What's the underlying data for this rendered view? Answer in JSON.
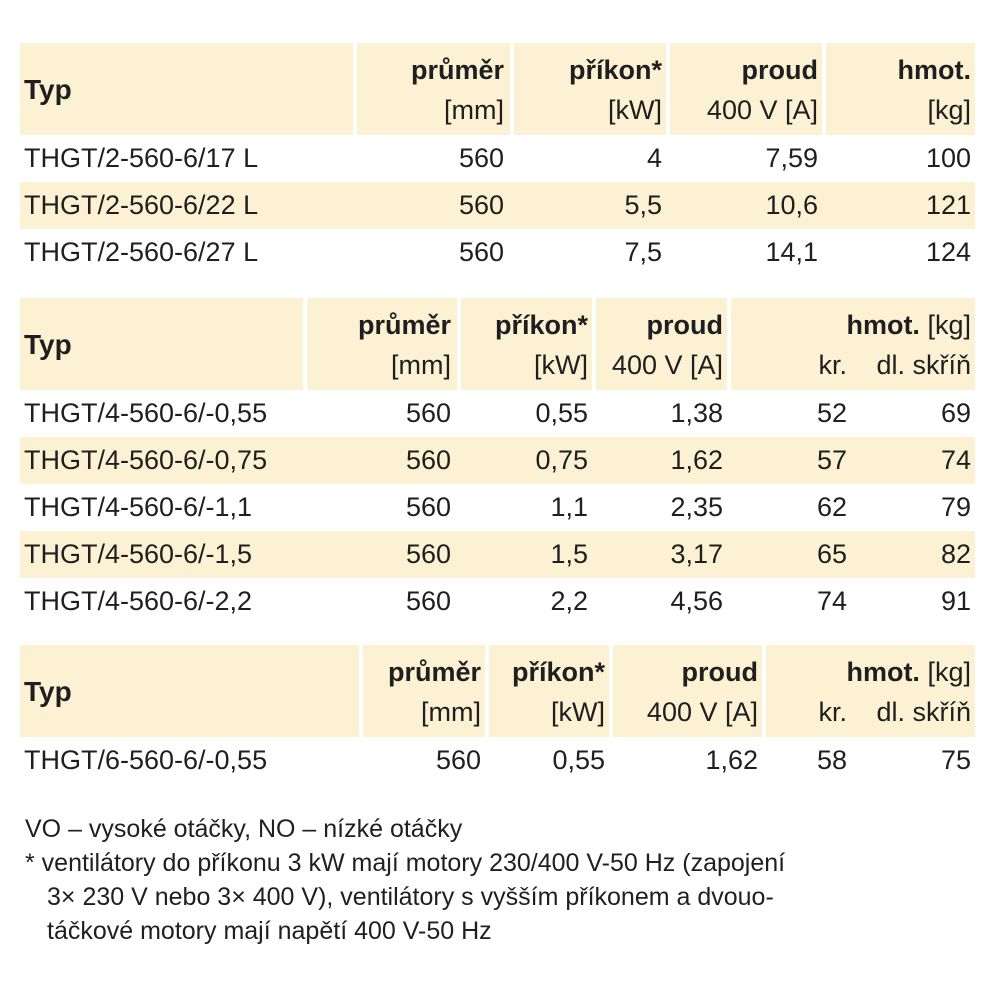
{
  "table1": {
    "headers": {
      "typ": "Typ",
      "prumer": "průměr",
      "prumer_unit": "[mm]",
      "prikon": "příkon*",
      "prikon_unit": "[kW]",
      "proud": "proud",
      "proud_unit": "400 V [A]",
      "hmot": "hmot.",
      "hmot_unit": "[kg]"
    },
    "rows": [
      [
        "THGT/2-560-6/17 L",
        "560",
        "4",
        "7,59",
        "100"
      ],
      [
        "THGT/2-560-6/22 L",
        "560",
        "5,5",
        "10,6",
        "121"
      ],
      [
        "THGT/2-560-6/27 L",
        "560",
        "7,5",
        "14,1",
        "124"
      ]
    ]
  },
  "table2": {
    "headers": {
      "typ": "Typ",
      "prumer": "průměr",
      "prumer_unit": "[mm]",
      "prikon": "příkon*",
      "prikon_unit": "[kW]",
      "proud": "proud",
      "proud_unit": "400 V [A]",
      "hmot": "hmot.",
      "hmot_unit": "[kg]",
      "kr": "kr.",
      "dlskrin": "dl. skříň"
    },
    "rows": [
      [
        "THGT/4-560-6/-0,55",
        "560",
        "0,55",
        "1,38",
        "52",
        "69"
      ],
      [
        "THGT/4-560-6/-0,75",
        "560",
        "0,75",
        "1,62",
        "57",
        "74"
      ],
      [
        "THGT/4-560-6/-1,1",
        "560",
        "1,1",
        "2,35",
        "62",
        "79"
      ],
      [
        "THGT/4-560-6/-1,5",
        "560",
        "1,5",
        "3,17",
        "65",
        "82"
      ],
      [
        "THGT/4-560-6/-2,2",
        "560",
        "2,2",
        "4,56",
        "74",
        "91"
      ]
    ]
  },
  "table3": {
    "headers": {
      "typ": "Typ",
      "prumer": "průměr",
      "prumer_unit": "[mm]",
      "prikon": "příkon*",
      "prikon_unit": "[kW]",
      "proud": "proud",
      "proud_unit": "400 V [A]",
      "hmot": "hmot.",
      "hmot_unit": "[kg]",
      "kr": "kr.",
      "dlskrin": "dl. skříň"
    },
    "rows": [
      [
        "THGT/6-560-6/-0,55",
        "560",
        "0,55",
        "1,62",
        "58",
        "75"
      ]
    ]
  },
  "notes": {
    "line1": "VO – vysoké otáčky, NO – nízké otáčky",
    "line2": "* ventilátory do příkonu 3 kW mají motory 230/400 V-50 Hz (zapojení",
    "line3": "3× 230 V nebo 3× 400 V), ventilátory s vyšším příkonem a dvouo-",
    "line4": "táčkové motory mají napětí 400 V-50 Hz"
  },
  "colors": {
    "header_bg": "#fdf1d3",
    "text": "#1f1f1f"
  }
}
